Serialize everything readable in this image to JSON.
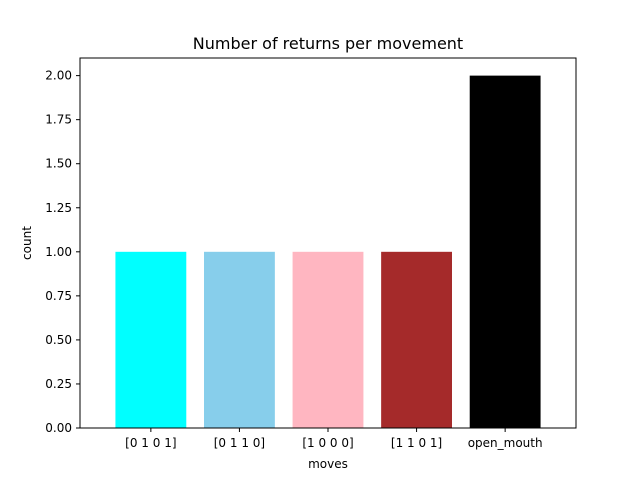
{
  "chart_data": {
    "type": "bar",
    "title": "Number of returns per movement",
    "xlabel": "moves",
    "ylabel": "count",
    "categories": [
      "[0 1 0 1]",
      "[0 1 1 0]",
      "[1 0 0 0]",
      "[1 1 0 1]",
      "open_mouth"
    ],
    "values": [
      1,
      1,
      1,
      1,
      2
    ],
    "colors": [
      "#00ffff",
      "#87ceeb",
      "#ffb6c1",
      "#a52a2a",
      "#000000"
    ],
    "ylim": [
      0,
      2.1
    ],
    "yticks": [
      0.0,
      0.25,
      0.5,
      0.75,
      1.0,
      1.25,
      1.5,
      1.75,
      2.0
    ],
    "ytick_labels": [
      "0.00",
      "0.25",
      "0.50",
      "0.75",
      "1.00",
      "1.25",
      "1.50",
      "1.75",
      "2.00"
    ],
    "grid": false,
    "legend": "none"
  }
}
